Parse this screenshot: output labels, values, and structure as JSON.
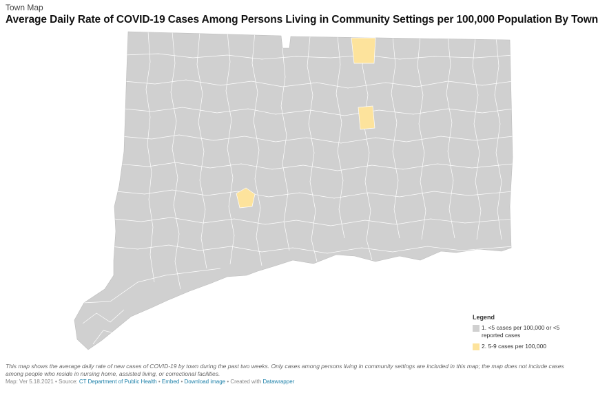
{
  "header": {
    "kicker": "Town Map",
    "title": "Average Daily Rate of COVID-19 Cases Among Persons Living in Community Settings per 100,000 Population By Town"
  },
  "colors": {
    "low": "#d0d0d0",
    "mid": "#fde39c",
    "border": "#ffffff"
  },
  "legend": {
    "title": "Legend",
    "items": [
      {
        "label": "1. <5 cases per 100,000 or <5 reported cases",
        "color": "#d0d0d0"
      },
      {
        "label": "2. 5-9 cases per 100,000",
        "color": "#fde39c"
      }
    ]
  },
  "notes": "This map shows the average daily rate of new cases of COVID-19 by town during the past two weeks. Only cases among persons living in community settings are included in this map; the map does not include cases among people who reside in nursing home, assisted living, or correctional facilities.",
  "footer": {
    "prefix": "Map: Ver 5.18.2021 • Source: ",
    "source_link": "CT Department of Public Health",
    "sep1": " • ",
    "embed_link": "Embed",
    "sep2": " • ",
    "download_link": "Download image",
    "sep3": " • Created with ",
    "tool_link": "Datawrapper"
  }
}
